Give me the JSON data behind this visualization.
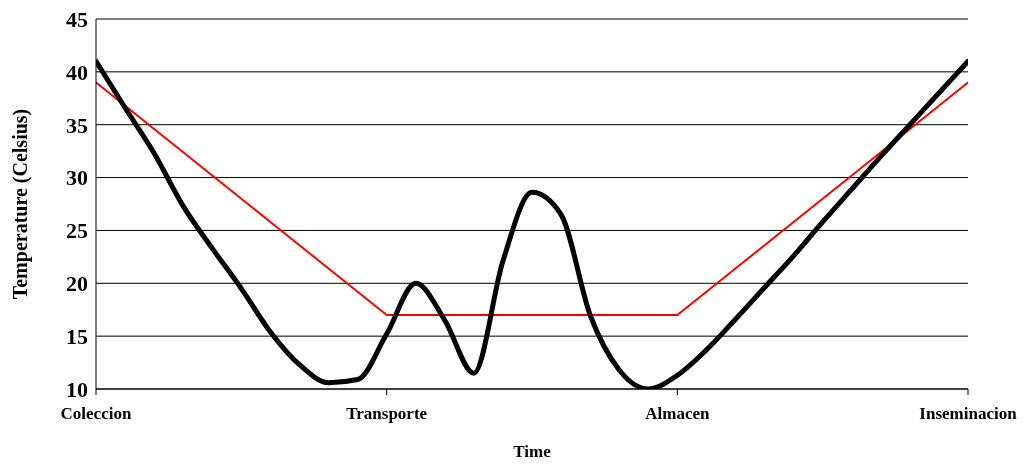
{
  "chart_data": {
    "type": "line",
    "xlabel": "Time",
    "ylabel": "Temperature (Celsius)",
    "categories": [
      "Coleccion",
      null,
      null,
      null,
      null,
      null,
      null,
      null,
      null,
      null,
      "Transporte",
      null,
      null,
      null,
      null,
      null,
      null,
      null,
      null,
      null,
      "Almacen",
      null,
      null,
      null,
      null,
      null,
      null,
      null,
      null,
      null,
      "Inseminacion"
    ],
    "ylim": [
      10,
      45
    ],
    "yticks": [
      10,
      15,
      20,
      25,
      30,
      35,
      40,
      45
    ],
    "grid": "y",
    "marker": "none",
    "line_style": "solid",
    "series": [
      {
        "color": "#ff0000",
        "values": [
          39,
          36.8,
          34.6,
          32.4,
          30.2,
          28,
          25.8,
          23.6,
          21.4,
          19.2,
          17,
          17,
          17,
          17,
          17,
          17,
          17,
          17,
          17,
          17,
          17,
          19.2,
          21.4,
          23.6,
          25.8,
          28,
          30.2,
          32.4,
          34.6,
          36.8,
          39
        ]
      },
      {
        "color": "#000000",
        "values": [
          41,
          36.6,
          32.3,
          27.3,
          23.3,
          19.5,
          15.4,
          12.3,
          10.6,
          10.9,
          15.2,
          20,
          16.5,
          11.5,
          22.1,
          28.6,
          26.5,
          17,
          11.8,
          10,
          11.3,
          13.7,
          16.6,
          19.6,
          22.6,
          25.8,
          28.9,
          32,
          35,
          38,
          41
        ]
      }
    ]
  }
}
